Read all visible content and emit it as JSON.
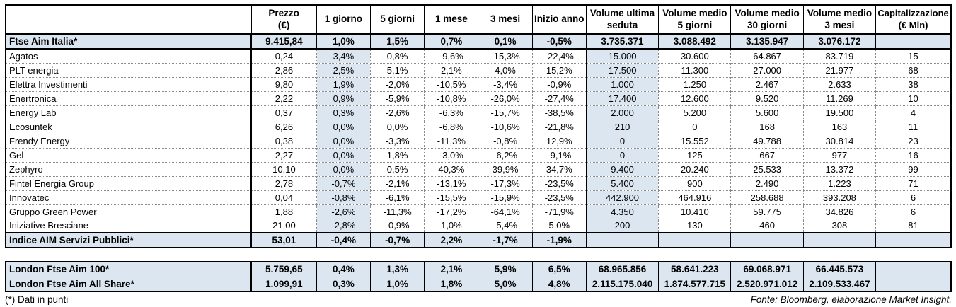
{
  "colors": {
    "row_shade": "#dce6f1",
    "border": "#000000",
    "dotted_grid": "#8a8a8a"
  },
  "main_table": {
    "columns": [
      "",
      "Prezzo\n(€)",
      "1 giorno",
      "5 giorni",
      "1 mese",
      "3 mesi",
      "Inizio anno",
      "Volume ultima\nseduta",
      "Volume medio\n5 giorni",
      "Volume medio\n30 giorni",
      "Volume medio\n3 mesi",
      "Capitalizzazione\n(€ Mln)"
    ],
    "rows": [
      {
        "name": "Ftse Aim Italia*",
        "style": "index",
        "values": [
          "9.415,84",
          "1,0%",
          "1,5%",
          "0,7%",
          "0,1%",
          "-0,5%",
          "3.735.371",
          "3.088.492",
          "3.135.947",
          "3.076.172",
          ""
        ]
      },
      {
        "name": "Agatos",
        "style": "stock",
        "values": [
          "0,24",
          "3,4%",
          "0,8%",
          "-9,6%",
          "-15,3%",
          "-22,4%",
          "15.000",
          "30.600",
          "64.867",
          "83.719",
          "15"
        ]
      },
      {
        "name": "PLT energia",
        "style": "stock",
        "values": [
          "2,86",
          "2,5%",
          "5,1%",
          "2,1%",
          "4,0%",
          "15,2%",
          "17.500",
          "11.300",
          "27.000",
          "21.977",
          "68"
        ]
      },
      {
        "name": "Elettra Investimenti",
        "style": "stock",
        "values": [
          "9,80",
          "1,9%",
          "-2,0%",
          "-10,5%",
          "-3,4%",
          "-0,9%",
          "1.000",
          "1.250",
          "2.467",
          "2.633",
          "38"
        ]
      },
      {
        "name": "Enertronica",
        "style": "stock",
        "values": [
          "2,22",
          "0,9%",
          "-5,9%",
          "-10,8%",
          "-26,0%",
          "-27,4%",
          "17.400",
          "12.600",
          "9.520",
          "11.269",
          "10"
        ]
      },
      {
        "name": "Energy Lab",
        "style": "stock",
        "values": [
          "0,37",
          "0,3%",
          "-2,6%",
          "-6,3%",
          "-15,7%",
          "-38,5%",
          "2.000",
          "5.200",
          "5.600",
          "19.500",
          "4"
        ]
      },
      {
        "name": "Ecosuntek",
        "style": "stock",
        "values": [
          "6,26",
          "0,0%",
          "0,0%",
          "-6,8%",
          "-10,6%",
          "-21,8%",
          "210",
          "0",
          "168",
          "163",
          "11"
        ]
      },
      {
        "name": "Frendy Energy",
        "style": "stock",
        "values": [
          "0,38",
          "0,0%",
          "-3,3%",
          "-11,3%",
          "-0,8%",
          "12,9%",
          "0",
          "15.552",
          "49.788",
          "30.814",
          "23"
        ]
      },
      {
        "name": "Gel",
        "style": "stock",
        "values": [
          "2,27",
          "0,0%",
          "1,8%",
          "-3,0%",
          "-6,2%",
          "-9,1%",
          "0",
          "125",
          "667",
          "977",
          "16"
        ]
      },
      {
        "name": "Zephyro",
        "style": "stock",
        "values": [
          "10,10",
          "0,0%",
          "0,5%",
          "40,3%",
          "39,9%",
          "34,7%",
          "9.400",
          "20.240",
          "25.533",
          "13.372",
          "99"
        ]
      },
      {
        "name": "Fintel Energia Group",
        "style": "stock",
        "values": [
          "2,78",
          "-0,7%",
          "-2,1%",
          "-13,1%",
          "-17,3%",
          "-23,5%",
          "5.400",
          "900",
          "2.490",
          "1.223",
          "71"
        ]
      },
      {
        "name": "Innovatec",
        "style": "stock",
        "values": [
          "0,04",
          "-0,8%",
          "-6,1%",
          "-15,5%",
          "-15,9%",
          "-23,5%",
          "442.900",
          "464.916",
          "258.688",
          "393.208",
          "6"
        ]
      },
      {
        "name": "Gruppo Green Power",
        "style": "stock",
        "values": [
          "1,88",
          "-2,6%",
          "-11,3%",
          "-17,2%",
          "-64,1%",
          "-71,9%",
          "4.350",
          "10.410",
          "59.775",
          "34.826",
          "6"
        ]
      },
      {
        "name": "Iniziative Bresciane",
        "style": "stock",
        "values": [
          "21,00",
          "-2,8%",
          "-0,9%",
          "1,0%",
          "-5,4%",
          "5,0%",
          "200",
          "130",
          "460",
          "308",
          "81"
        ]
      },
      {
        "name": "Indice AIM Servizi Pubblici*",
        "style": "index",
        "values": [
          "53,01",
          "-0,4%",
          "-0,7%",
          "2,2%",
          "-1,7%",
          "-1,9%",
          "",
          "",
          "",
          "",
          ""
        ]
      }
    ]
  },
  "london_table": {
    "rows": [
      {
        "name": "London Ftse Aim 100*",
        "style": "index",
        "values": [
          "5.759,65",
          "0,4%",
          "1,3%",
          "2,1%",
          "5,9%",
          "6,5%",
          "68.965.856",
          "58.641.223",
          "69.068.971",
          "66.445.573",
          ""
        ]
      },
      {
        "name": "London Ftse Aim All Share*",
        "style": "index",
        "values": [
          "1.099,91",
          "0,3%",
          "1,0%",
          "1,8%",
          "5,0%",
          "4,8%",
          "2.115.175.040",
          "1.874.577.715",
          "2.520.971.012",
          "2.109.533.467",
          ""
        ]
      }
    ]
  },
  "footer": {
    "note": "(*) Dati in punti",
    "source": "Fonte: Bloomberg, elaborazione Market Insight."
  }
}
